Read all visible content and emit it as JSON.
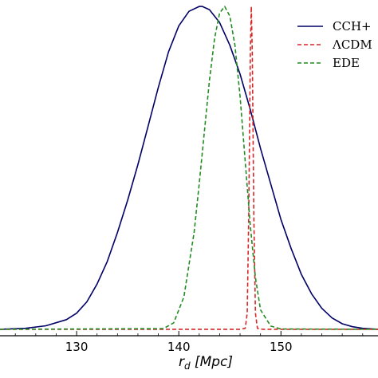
{
  "chart_data": {
    "type": "line",
    "title": "",
    "xlabel": "r_d [Mpc]",
    "xlabel_parts": {
      "main": "r",
      "sub": "d",
      "unit": " [Mpc]"
    },
    "ylabel": "",
    "xlim": [
      122.5,
      159.5
    ],
    "ylim": [
      -0.02,
      1.02
    ],
    "x_ticks": [
      130,
      140,
      150
    ],
    "x_tick_labels": [
      "130",
      "140",
      "150"
    ],
    "grid": false,
    "legend_position": "top-right",
    "series": [
      {
        "name": "CCH+",
        "color": "#000066",
        "style": "solid",
        "x": [
          122.5,
          125,
          127,
          129,
          130,
          131,
          132,
          133,
          134,
          135,
          136,
          137,
          138,
          139,
          140,
          141,
          142,
          142.3,
          143,
          144,
          145,
          146,
          147,
          148,
          149,
          150,
          151,
          152,
          153,
          154,
          155,
          156,
          157,
          158,
          159.5
        ],
        "y": [
          0.0,
          0.003,
          0.011,
          0.03,
          0.05,
          0.085,
          0.14,
          0.21,
          0.3,
          0.4,
          0.51,
          0.63,
          0.75,
          0.86,
          0.94,
          0.985,
          1.0,
          1.0,
          0.99,
          0.95,
          0.88,
          0.79,
          0.68,
          0.56,
          0.45,
          0.34,
          0.25,
          0.17,
          0.11,
          0.065,
          0.035,
          0.017,
          0.008,
          0.003,
          0.0
        ]
      },
      {
        "name": "ΛCDM",
        "color": "#d62728",
        "style": "dashed",
        "x": [
          122.5,
          146.0,
          146.5,
          146.7,
          146.85,
          147.0,
          147.1,
          147.2,
          147.35,
          147.5,
          147.7,
          148.2,
          159.5
        ],
        "y": [
          0.0,
          0.0,
          0.003,
          0.05,
          0.35,
          0.85,
          1.0,
          0.85,
          0.35,
          0.05,
          0.003,
          0.0,
          0.0
        ]
      },
      {
        "name": "EDE",
        "color": "#228b22",
        "style": "dashed",
        "x": [
          122.5,
          138.5,
          139.5,
          140.5,
          141.5,
          142,
          142.5,
          143,
          143.5,
          144,
          144.5,
          145,
          145.5,
          146,
          146.5,
          147,
          147.5,
          148,
          149,
          150,
          159.5
        ],
        "y": [
          0.0,
          0.002,
          0.02,
          0.1,
          0.3,
          0.45,
          0.61,
          0.77,
          0.9,
          0.98,
          1.0,
          0.97,
          0.88,
          0.72,
          0.52,
          0.32,
          0.16,
          0.06,
          0.01,
          0.001,
          0.0
        ]
      }
    ]
  }
}
